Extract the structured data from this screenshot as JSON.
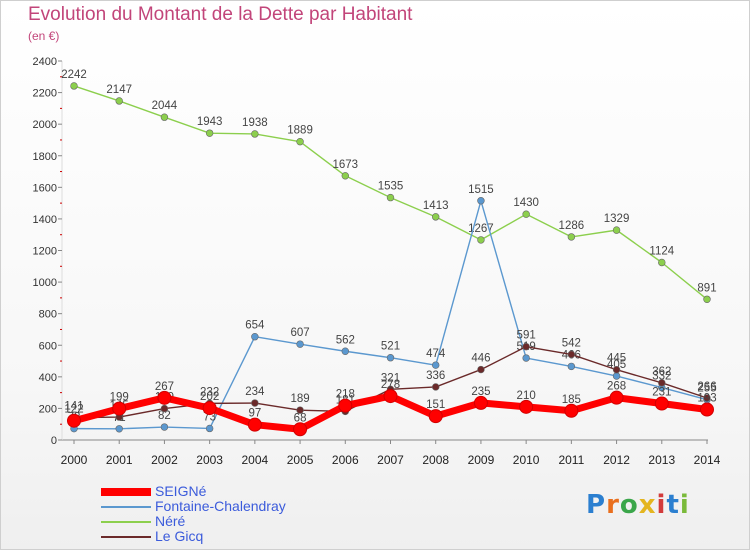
{
  "header": {
    "title": "Evolution du Montant de la Dette par Habitant",
    "subtitle": "(en €)"
  },
  "brand": {
    "letters": [
      "P",
      "r",
      "o",
      "x",
      "i",
      "t",
      "i"
    ]
  },
  "chart_data": {
    "type": "line",
    "title": "Evolution du Montant de la Dette par Habitant",
    "subtitle": "(en €)",
    "xlabel": "",
    "ylabel": "",
    "x": [
      "2000",
      "2001",
      "2002",
      "2003",
      "2004",
      "2005",
      "2006",
      "2007",
      "2008",
      "2009",
      "2010",
      "2011",
      "2012",
      "2013",
      "2014"
    ],
    "ylim": [
      0,
      2400
    ],
    "yticks": [
      "0",
      "200",
      "400",
      "600",
      "800",
      "1000",
      "1200",
      "1400",
      "1600",
      "1800",
      "2000",
      "2200",
      "2400"
    ],
    "grid": false,
    "legend_position": "bottom-left",
    "series": [
      {
        "name": "Néré",
        "color": "#8ccf4d",
        "values": [
          2242,
          2147,
          2044,
          1943,
          1938,
          1889,
          1673,
          1535,
          1413,
          1267,
          1430,
          1286,
          1329,
          1124,
          891
        ]
      },
      {
        "name": "Fontaine-Chalendray",
        "color": "#5b98cf",
        "values": [
          72,
          71,
          82,
          73,
          654,
          607,
          562,
          521,
          474,
          1515,
          519,
          466,
          405,
          332,
          255
        ]
      },
      {
        "name": "Le Gicq",
        "color": "#6b2a2a",
        "values": [
          141,
          145,
          199,
          232,
          234,
          189,
          181,
          321,
          336,
          446,
          591,
          542,
          445,
          362,
          266
        ]
      },
      {
        "name": "SEIGNé",
        "color": "#ff0000",
        "values": [
          122,
          199,
          267,
          202,
          97,
          68,
          218,
          278,
          151,
          235,
          210,
          185,
          268,
          231,
          193
        ]
      }
    ]
  }
}
